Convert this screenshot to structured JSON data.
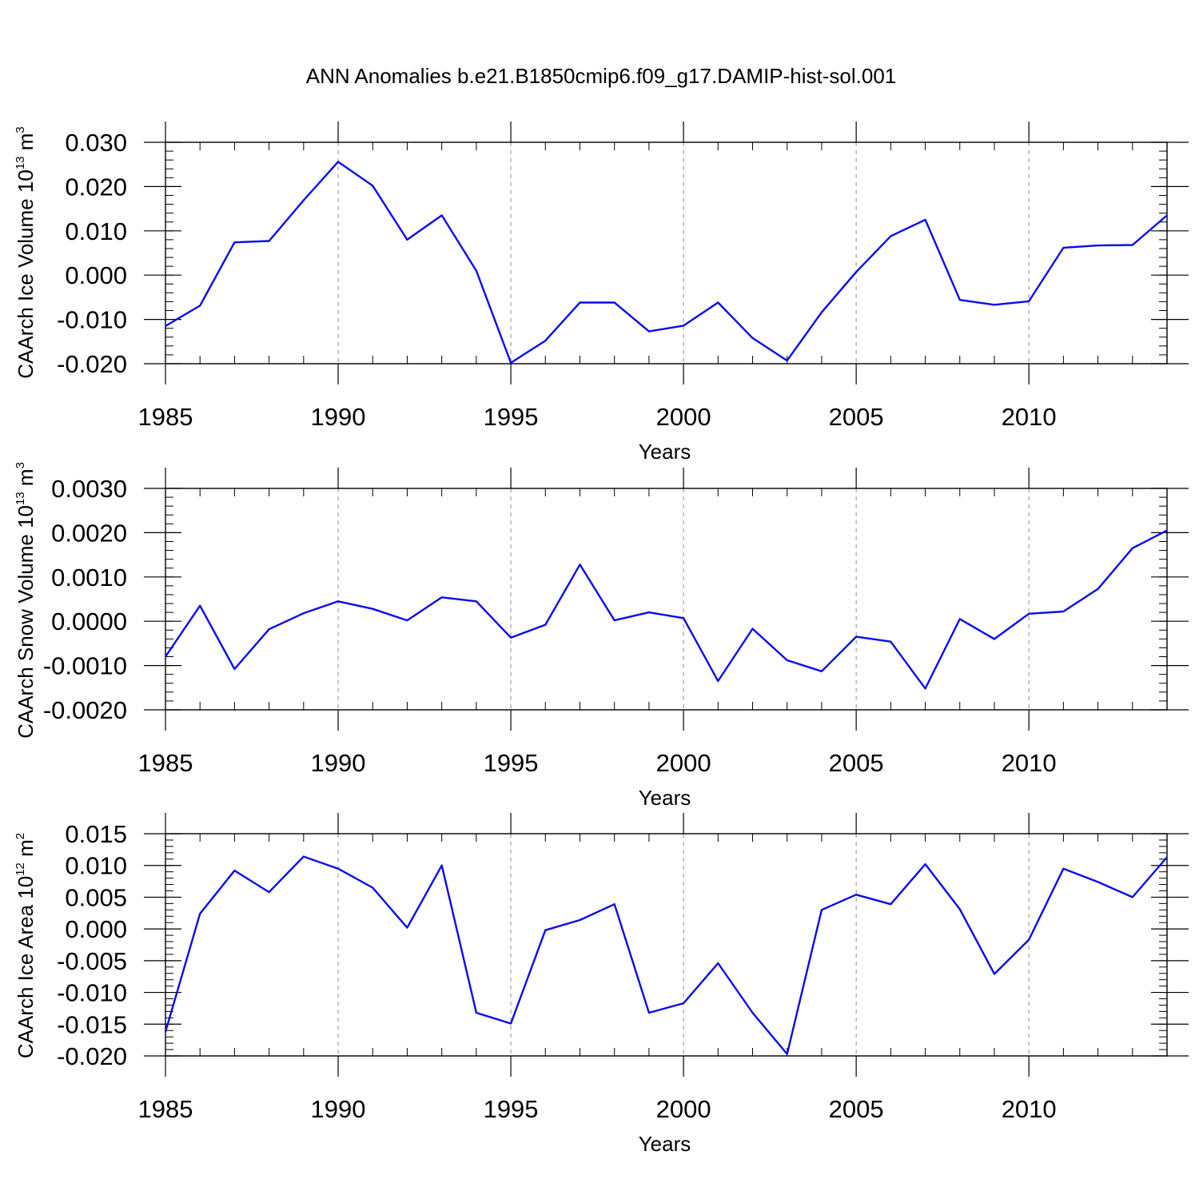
{
  "title": "ANN Anomalies b.e21.B1850cmip6.f09_g17.DAMIP-hist-sol.001",
  "colors": {
    "line": "#0a0aee",
    "axis": "#000000",
    "grid": "#8c8c8c"
  },
  "chart_data": [
    {
      "type": "line",
      "xlabel": "Years",
      "ylabel": {
        "main": "CAArch Ice Volume 10",
        "exp": "13",
        "unit": " m",
        "unit_exp": "3"
      },
      "xlim": [
        1985,
        2014
      ],
      "ylim": [
        -0.02,
        0.03
      ],
      "grid": "vertical dashed at major x ticks",
      "x_ticks": [
        1985,
        1990,
        1995,
        2000,
        2005,
        2010
      ],
      "x_tick_labels": [
        "1985",
        "1990",
        "1995",
        "2000",
        "2005",
        "2010"
      ],
      "y_ticks": [
        -0.02,
        -0.01,
        0.0,
        0.01,
        0.02,
        0.03
      ],
      "y_tick_labels": [
        "-0.020",
        "-0.010",
        "0.000",
        "0.010",
        "0.020",
        "0.030"
      ],
      "y_minor_step": 0.002,
      "x": [
        1985,
        1986,
        1987,
        1988,
        1989,
        1990,
        1991,
        1992,
        1993,
        1994,
        1995,
        1996,
        1997,
        1998,
        1999,
        2000,
        2001,
        2002,
        2003,
        2004,
        2005,
        2006,
        2007,
        2008,
        2009,
        2010,
        2011,
        2012,
        2013,
        2014
      ],
      "values": [
        -0.0115,
        -0.0069,
        0.0074,
        0.0077,
        0.0169,
        0.0256,
        0.0202,
        0.008,
        0.0135,
        0.001,
        -0.0198,
        -0.0148,
        -0.0062,
        -0.0062,
        -0.0127,
        -0.0114,
        -0.0062,
        -0.0142,
        -0.0193,
        -0.0084,
        0.0007,
        0.0088,
        0.0125,
        -0.0056,
        -0.0067,
        -0.0059,
        0.0062,
        0.0067,
        0.0068,
        0.0135
      ]
    },
    {
      "type": "line",
      "xlabel": "Years",
      "ylabel": {
        "main": "CAArch Snow Volume 10",
        "exp": "13",
        "unit": " m",
        "unit_exp": "3"
      },
      "xlim": [
        1985,
        2014
      ],
      "ylim": [
        -0.002,
        0.003
      ],
      "grid": "vertical dashed at major x ticks",
      "x_ticks": [
        1985,
        1990,
        1995,
        2000,
        2005,
        2010
      ],
      "x_tick_labels": [
        "1985",
        "1990",
        "1995",
        "2000",
        "2005",
        "2010"
      ],
      "y_ticks": [
        -0.002,
        -0.001,
        0.0,
        0.001,
        0.002,
        0.003
      ],
      "y_tick_labels": [
        "-0.0020",
        "-0.0010",
        "0.0000",
        "0.0010",
        "0.0020",
        "0.0030"
      ],
      "y_minor_step": 0.0002,
      "x": [
        1985,
        1986,
        1987,
        1988,
        1989,
        1990,
        1991,
        1992,
        1993,
        1994,
        1995,
        1996,
        1997,
        1998,
        1999,
        2000,
        2001,
        2002,
        2003,
        2004,
        2005,
        2006,
        2007,
        2008,
        2009,
        2010,
        2011,
        2012,
        2013,
        2014
      ],
      "values": [
        -0.0008,
        0.00035,
        -0.00108,
        -0.00018,
        0.00018,
        0.00045,
        0.00028,
        2e-05,
        0.00054,
        0.00045,
        -0.00037,
        -8e-05,
        0.00128,
        2e-05,
        0.0002,
        7e-05,
        -0.00135,
        -0.00017,
        -0.00088,
        -0.00113,
        -0.00035,
        -0.00046,
        -0.00152,
        5e-05,
        -0.0004,
        0.00017,
        0.00022,
        0.00073,
        0.00165,
        0.00205
      ]
    },
    {
      "type": "line",
      "xlabel": "Years",
      "ylabel": {
        "main": "CAArch Ice Area 10",
        "exp": "12",
        "unit": " m",
        "unit_exp": "2"
      },
      "xlim": [
        1985,
        2014
      ],
      "ylim": [
        -0.02,
        0.015
      ],
      "grid": "vertical dashed at major x ticks",
      "x_ticks": [
        1985,
        1990,
        1995,
        2000,
        2005,
        2010
      ],
      "x_tick_labels": [
        "1985",
        "1990",
        "1995",
        "2000",
        "2005",
        "2010"
      ],
      "y_ticks": [
        -0.02,
        -0.015,
        -0.01,
        -0.005,
        0.0,
        0.005,
        0.01,
        0.015
      ],
      "y_tick_labels": [
        "-0.020",
        "-0.015",
        "-0.010",
        "-0.005",
        "0.000",
        "0.005",
        "0.010",
        "0.015"
      ],
      "y_minor_step": 0.001,
      "x": [
        1985,
        1986,
        1987,
        1988,
        1989,
        1990,
        1991,
        1992,
        1993,
        1994,
        1995,
        1996,
        1997,
        1998,
        1999,
        2000,
        2001,
        2002,
        2003,
        2004,
        2005,
        2006,
        2007,
        2008,
        2009,
        2010,
        2011,
        2012,
        2013,
        2014
      ],
      "values": [
        -0.0162,
        0.0024,
        0.0092,
        0.0058,
        0.0114,
        0.0095,
        0.0065,
        0.0002,
        0.01,
        -0.0132,
        -0.0149,
        -0.0002,
        0.0014,
        0.0039,
        -0.0132,
        -0.0117,
        -0.0054,
        -0.0132,
        -0.0197,
        0.003,
        0.0054,
        0.0039,
        0.0102,
        0.0031,
        -0.0071,
        -0.0017,
        0.0095,
        0.0074,
        0.005,
        0.0113
      ]
    }
  ]
}
